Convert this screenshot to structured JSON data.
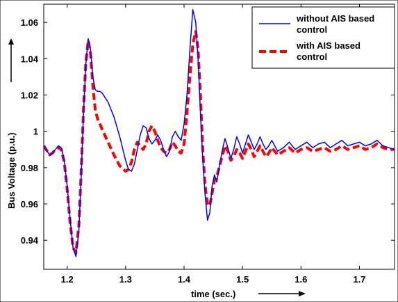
{
  "chart_data": {
    "type": "line",
    "xlabel": "time (sec.)",
    "ylabel": "Bus Voltage (p.u.)",
    "xlim": [
      1.16,
      1.76
    ],
    "ylim": [
      0.924,
      1.07
    ],
    "xticks": [
      "1.2",
      "1.3",
      "1.4",
      "1.5",
      "1.6",
      "1.7"
    ],
    "yticks": [
      "0.94",
      "0.96",
      "0.98",
      "1",
      "1.02",
      "1.04",
      "1.06"
    ],
    "grid": false,
    "legend_position": "top-right",
    "series": [
      {
        "name": "without AIS based control",
        "legend_lines": [
          "without AIS based",
          "control"
        ],
        "color": "#0000ff",
        "style": "solid",
        "x": [
          1.16,
          1.17,
          1.175,
          1.18,
          1.185,
          1.19,
          1.195,
          1.2,
          1.205,
          1.21,
          1.215,
          1.22,
          1.224,
          1.228,
          1.232,
          1.236,
          1.24,
          1.244,
          1.248,
          1.252,
          1.256,
          1.26,
          1.27,
          1.28,
          1.29,
          1.3,
          1.305,
          1.31,
          1.315,
          1.32,
          1.325,
          1.33,
          1.335,
          1.34,
          1.345,
          1.35,
          1.355,
          1.36,
          1.365,
          1.37,
          1.375,
          1.38,
          1.385,
          1.39,
          1.395,
          1.4,
          1.405,
          1.41,
          1.415,
          1.42,
          1.424,
          1.428,
          1.432,
          1.436,
          1.44,
          1.444,
          1.448,
          1.452,
          1.456,
          1.46,
          1.465,
          1.47,
          1.475,
          1.48,
          1.485,
          1.49,
          1.495,
          1.5,
          1.505,
          1.51,
          1.515,
          1.52,
          1.525,
          1.53,
          1.535,
          1.54,
          1.545,
          1.55,
          1.56,
          1.57,
          1.58,
          1.59,
          1.6,
          1.61,
          1.62,
          1.63,
          1.64,
          1.65,
          1.66,
          1.67,
          1.68,
          1.69,
          1.7,
          1.71,
          1.72,
          1.73,
          1.74,
          1.75,
          1.76
        ],
        "y": [
          0.992,
          0.987,
          0.988,
          0.99,
          0.992,
          0.991,
          0.984,
          0.97,
          0.952,
          0.936,
          0.931,
          0.945,
          0.975,
          1.01,
          1.037,
          1.051,
          1.045,
          1.03,
          1.023,
          1.022,
          1.022,
          1.021,
          1.016,
          1.008,
          0.997,
          0.984,
          0.979,
          0.978,
          0.982,
          0.99,
          0.998,
          1.003,
          1.002,
          0.996,
          0.993,
          0.995,
          0.998,
          0.995,
          0.99,
          0.986,
          0.989,
          0.997,
          1.0,
          0.997,
          0.995,
          1.004,
          1.02,
          1.045,
          1.067,
          1.06,
          1.04,
          1.01,
          0.985,
          0.965,
          0.951,
          0.955,
          0.97,
          0.976,
          0.972,
          0.98,
          0.989,
          0.996,
          0.991,
          0.985,
          0.99,
          0.997,
          0.993,
          0.988,
          0.993,
          0.998,
          0.994,
          0.99,
          0.993,
          0.997,
          0.993,
          0.99,
          0.992,
          0.995,
          0.989,
          0.991,
          0.994,
          0.99,
          0.992,
          0.994,
          0.991,
          0.993,
          0.994,
          0.991,
          0.993,
          0.995,
          0.992,
          0.993,
          0.994,
          0.992,
          0.993,
          0.995,
          0.992,
          0.991,
          0.99
        ]
      },
      {
        "name": "with AIS based control",
        "legend_lines": [
          "with AIS based",
          "control"
        ],
        "color": "#ff0000",
        "style": "dashed",
        "x": [
          1.16,
          1.17,
          1.175,
          1.18,
          1.185,
          1.19,
          1.195,
          1.2,
          1.205,
          1.21,
          1.215,
          1.22,
          1.224,
          1.228,
          1.232,
          1.236,
          1.24,
          1.244,
          1.248,
          1.252,
          1.256,
          1.26,
          1.27,
          1.28,
          1.29,
          1.3,
          1.305,
          1.31,
          1.315,
          1.32,
          1.325,
          1.33,
          1.335,
          1.34,
          1.345,
          1.35,
          1.355,
          1.36,
          1.365,
          1.37,
          1.375,
          1.38,
          1.385,
          1.39,
          1.395,
          1.4,
          1.405,
          1.41,
          1.415,
          1.42,
          1.424,
          1.428,
          1.432,
          1.436,
          1.44,
          1.444,
          1.448,
          1.452,
          1.456,
          1.46,
          1.465,
          1.47,
          1.475,
          1.48,
          1.485,
          1.49,
          1.495,
          1.5,
          1.505,
          1.51,
          1.515,
          1.52,
          1.525,
          1.53,
          1.535,
          1.54,
          1.545,
          1.55,
          1.56,
          1.57,
          1.58,
          1.59,
          1.6,
          1.61,
          1.62,
          1.63,
          1.64,
          1.65,
          1.66,
          1.67,
          1.68,
          1.69,
          1.7,
          1.71,
          1.72,
          1.73,
          1.74,
          1.75,
          1.76
        ],
        "y": [
          0.992,
          0.987,
          0.988,
          0.99,
          0.991,
          0.99,
          0.983,
          0.968,
          0.95,
          0.936,
          0.933,
          0.948,
          0.978,
          1.012,
          1.038,
          1.05,
          1.043,
          1.025,
          1.012,
          1.007,
          1.004,
          1.001,
          0.994,
          0.987,
          0.981,
          0.978,
          0.979,
          0.983,
          0.99,
          0.994,
          0.992,
          0.99,
          0.993,
          1.0,
          1.003,
          1.0,
          0.995,
          0.991,
          0.989,
          0.988,
          0.99,
          0.994,
          0.992,
          0.989,
          0.988,
          0.993,
          1.01,
          1.03,
          1.048,
          1.055,
          1.045,
          1.02,
          0.99,
          0.97,
          0.96,
          0.959,
          0.966,
          0.973,
          0.975,
          0.98,
          0.986,
          0.992,
          0.989,
          0.984,
          0.986,
          0.99,
          0.988,
          0.985,
          0.989,
          0.993,
          0.99,
          0.986,
          0.989,
          0.992,
          0.989,
          0.986,
          0.988,
          0.991,
          0.987,
          0.989,
          0.991,
          0.988,
          0.99,
          0.991,
          0.989,
          0.99,
          0.991,
          0.989,
          0.99,
          0.992,
          0.99,
          0.991,
          0.992,
          0.99,
          0.991,
          0.993,
          0.991,
          0.99,
          0.99
        ]
      }
    ]
  }
}
